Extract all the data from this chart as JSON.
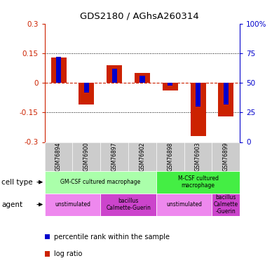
{
  "title": "GDS2180 / AGhsA260314",
  "samples": [
    "GSM76894",
    "GSM76900",
    "GSM76897",
    "GSM76902",
    "GSM76898",
    "GSM76903",
    "GSM76899"
  ],
  "log_ratios": [
    0.13,
    -0.11,
    0.09,
    0.05,
    -0.04,
    -0.27,
    -0.17
  ],
  "percentile_ranks": [
    72,
    42,
    62,
    56,
    48,
    30,
    32
  ],
  "ylim_left": [
    -0.3,
    0.3
  ],
  "ylim_right": [
    0,
    100
  ],
  "yticks_left": [
    -0.3,
    -0.15,
    0,
    0.15,
    0.3
  ],
  "yticks_right": [
    0,
    25,
    50,
    75,
    100
  ],
  "ytick_labels_right": [
    "0",
    "25",
    "50",
    "75",
    "100%"
  ],
  "hlines_dotted": [
    0.15,
    -0.15
  ],
  "hline_zero_color": "#CC2200",
  "log_ratio_color": "#CC2200",
  "percentile_color": "#0000CC",
  "cell_type_groups": [
    {
      "label": "GM-CSF cultured macrophage",
      "start": 0,
      "end": 3,
      "color": "#AAFFAA"
    },
    {
      "label": "M-CSF cultured\nmacrophage",
      "start": 4,
      "end": 6,
      "color": "#44EE44"
    }
  ],
  "agent_groups": [
    {
      "label": "unstimulated",
      "start": 0,
      "end": 1,
      "color": "#EE88EE"
    },
    {
      "label": "bacillus\nCalmette-Guerin",
      "start": 2,
      "end": 3,
      "color": "#CC44CC"
    },
    {
      "label": "unstimulated",
      "start": 4,
      "end": 5,
      "color": "#EE88EE"
    },
    {
      "label": "bacillus\nCalmette\n-Guerin",
      "start": 6,
      "end": 6,
      "color": "#CC44CC"
    }
  ],
  "sample_bg_color": "#CCCCCC",
  "legend_lr_label": "log ratio",
  "legend_pct_label": "percentile rank within the sample",
  "cell_type_label": "cell type",
  "agent_label": "agent"
}
